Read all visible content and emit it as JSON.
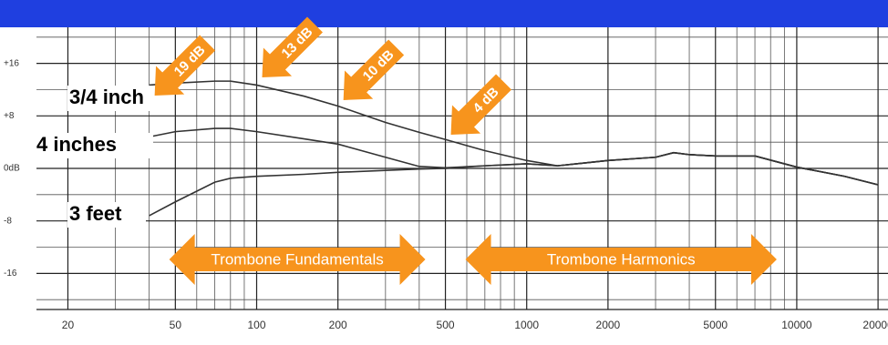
{
  "chart_data": {
    "type": "line",
    "log_x": true,
    "grid": true,
    "x": [
      40,
      50,
      70,
      80,
      100,
      150,
      200,
      300,
      400,
      500,
      700,
      1000,
      1300,
      2000,
      3000,
      3500,
      4000,
      5000,
      7000,
      10000,
      15000,
      20000
    ],
    "series": [
      {
        "name": "3/4 inch",
        "color": "#333333",
        "values": [
          12.7,
          13,
          13.3,
          13.3,
          12.7,
          11,
          9.5,
          7,
          5.5,
          4.4,
          2.7,
          1.2,
          0.4,
          1.2,
          1.7,
          2.4,
          2.1,
          1.9,
          1.9,
          0.2,
          -1.2,
          -2.5
        ]
      },
      {
        "name": "4 inches",
        "color": "#333333",
        "values": [
          4.8,
          5.6,
          6.1,
          6.1,
          5.6,
          4.5,
          3.7,
          1.7,
          0.3,
          0.1,
          0.4,
          0.7,
          0.4,
          1.2,
          1.7,
          2.4,
          2.1,
          1.9,
          1.9,
          0.2,
          -1.2,
          -2.5
        ]
      },
      {
        "name": "3 feet",
        "color": "#333333",
        "values": [
          -7.2,
          -5.1,
          -2.1,
          -1.5,
          -1.2,
          -0.9,
          -0.6,
          -0.3,
          -0.1,
          0,
          0.4,
          0.7,
          0.4,
          1.2,
          1.7,
          2.4,
          2.1,
          1.9,
          1.9,
          0.2,
          -1.2,
          -2.5
        ]
      }
    ],
    "xlim": [
      15.3,
      21770
    ],
    "xticks": [
      20,
      50,
      100,
      200,
      500,
      1000,
      2000,
      5000,
      10000,
      20000
    ],
    "minor_xticks": [
      30,
      40,
      60,
      70,
      80,
      90,
      300,
      400,
      600,
      700,
      800,
      900,
      3000,
      4000,
      6000,
      7000,
      8000,
      9000
    ],
    "ylim": [
      -21.5,
      21.5
    ],
    "yticks": [
      {
        "value": 16,
        "label": "+16"
      },
      {
        "value": 8,
        "label": "+8"
      },
      {
        "value": 0,
        "label": "0dB"
      },
      -8,
      -16
    ],
    "minor_yticks": [
      -20,
      -12,
      -4,
      4,
      12,
      20
    ],
    "annotations": [
      {
        "text": "19 dB",
        "x": 40
      },
      {
        "text": "13 dB",
        "x": 100
      },
      {
        "text": "10 dB",
        "x": 200
      },
      {
        "text": "4 dB",
        "x": 500
      }
    ],
    "ranges": [
      {
        "text": "Trombone Fundamentals",
        "from": 40,
        "to": 500
      },
      {
        "text": "Trombone Harmonics",
        "from": 500,
        "to": 10000
      }
    ],
    "header_color": "#1f3fe0",
    "annotation_color": "#f7941d"
  }
}
